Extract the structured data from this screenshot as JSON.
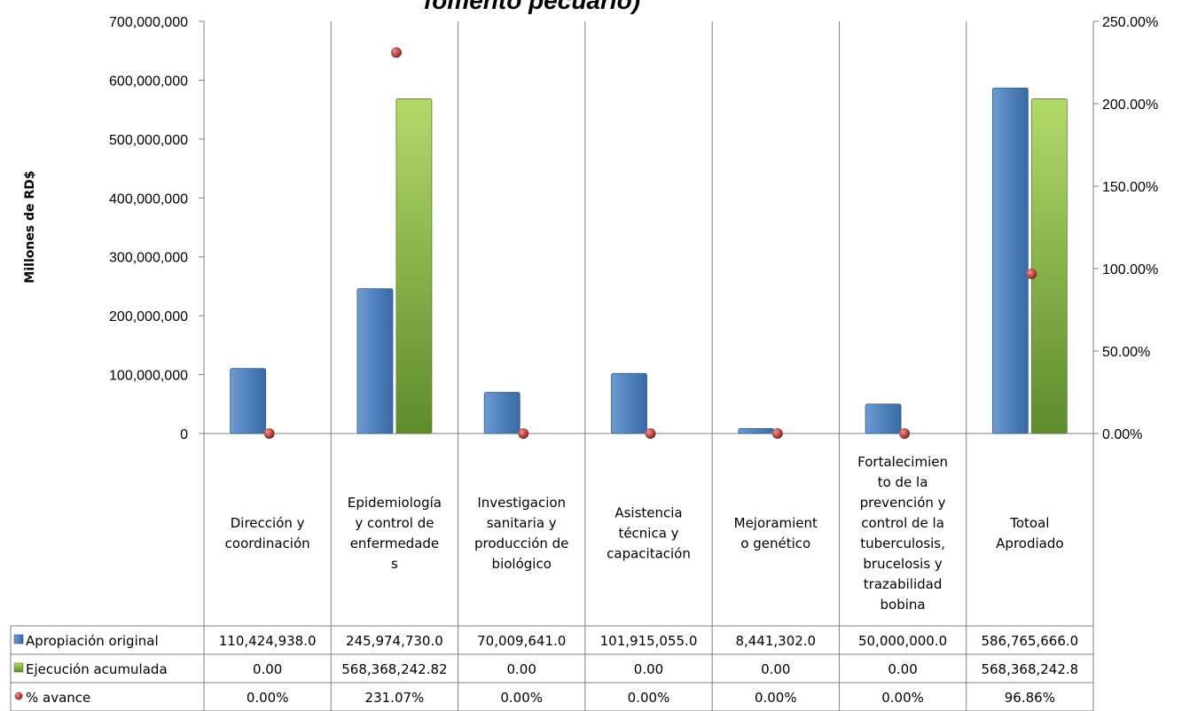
{
  "chart_data": {
    "type": "bar",
    "title": "fomento pecuario)",
    "ylabel": "Millones de RD$",
    "ylim": [
      0,
      700000000
    ],
    "y2lim": [
      0,
      250
    ],
    "y_ticks": [
      "0",
      "100,000,000",
      "200,000,000",
      "300,000,000",
      "400,000,000",
      "500,000,000",
      "600,000,000",
      "700,000,000"
    ],
    "y2_ticks": [
      "0.00%",
      "50.00%",
      "100.00%",
      "150.00%",
      "200.00%",
      "250.00%"
    ],
    "categories": [
      [
        "Dirección y",
        "coordinación"
      ],
      [
        "Epidemiología",
        "y control de",
        "enfermedade",
        "s"
      ],
      [
        "Investigacion",
        "sanitaria y",
        "producción de",
        "biológico"
      ],
      [
        "Asistencia",
        "técnica y",
        "capacitación"
      ],
      [
        "Mejoramient",
        "o genético"
      ],
      [
        "Fortalecimien",
        "to de la",
        "prevención y",
        "control de la",
        "tuberculosis,",
        "brucelosis y",
        "trazabilidad",
        "bobina"
      ],
      [
        "Totoal",
        "Aprodiado"
      ]
    ],
    "series": [
      {
        "name": "Apropiación  original",
        "axis": "left",
        "kind": "bar",
        "color": "#4f81bd",
        "values": [
          110424938.0,
          245974730.0,
          70009641.0,
          101915055.0,
          8441302.0,
          50000000.0,
          586765666.0
        ],
        "labels": [
          "110,424,938.0",
          "245,974,730.0",
          "70,009,641.0",
          "101,915,055.0",
          "8,441,302.0",
          "50,000,000.0",
          "586,765,666.0"
        ]
      },
      {
        "name": "Ejecución acumulada",
        "axis": "left",
        "kind": "bar",
        "color": "#9bbb59",
        "values": [
          0,
          568368242.82,
          0,
          0,
          0,
          0,
          568368242.8
        ],
        "labels": [
          "0.00",
          "568,368,242.82",
          "0.00",
          "0.00",
          "0.00",
          "0.00",
          "568,368,242.8"
        ]
      },
      {
        "name": "% avance",
        "axis": "right",
        "kind": "scatter",
        "color": "#c0504d",
        "values": [
          0,
          231.07,
          0,
          0,
          0,
          0,
          96.86
        ],
        "labels": [
          "0.00%",
          "231.07%",
          "0.00%",
          "0.00%",
          "0.00%",
          "0.00%",
          "96.86%"
        ]
      }
    ],
    "legend": "data table"
  }
}
